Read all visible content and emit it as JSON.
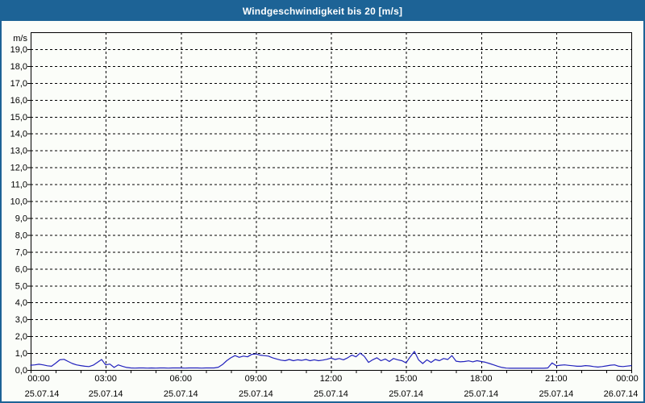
{
  "window": {
    "title": "Windgeschwindigkeit bis 20 [m/s]",
    "colors": {
      "titlebar_bg": "#1d6396",
      "frame_border": "#1d6396",
      "page_bg": "#fbfdf9",
      "grid": "#000000",
      "axis": "#000000",
      "line": "#2222bd"
    }
  },
  "chart_data": {
    "type": "line",
    "title": "Windgeschwindigkeit bis 20 [m/s]",
    "ylabel": "m/s",
    "ylim": [
      0,
      20
    ],
    "grid": true,
    "legend": "none",
    "y_tick_labels": [
      "0,0",
      "1,0",
      "2,0",
      "3,0",
      "4,0",
      "5,0",
      "6,0",
      "7,0",
      "8,0",
      "9,0",
      "10,0",
      "11,0",
      "12,0",
      "13,0",
      "14,0",
      "15,0",
      "16,0",
      "17,0",
      "18,0",
      "19,0"
    ],
    "x_span_hours": 24,
    "x_minor_tick_every_hours": 1,
    "x_ticks": [
      {
        "hour": 0,
        "time": "00:00",
        "date": "25.07.14"
      },
      {
        "hour": 3,
        "time": "03:00",
        "date": "25.07.14"
      },
      {
        "hour": 6,
        "time": "06:00",
        "date": "25.07.14"
      },
      {
        "hour": 9,
        "time": "09:00",
        "date": "25.07.14"
      },
      {
        "hour": 12,
        "time": "12:00",
        "date": "25.07.14"
      },
      {
        "hour": 15,
        "time": "15:00",
        "date": "25.07.14"
      },
      {
        "hour": 18,
        "time": "18:00",
        "date": "25.07.14"
      },
      {
        "hour": 21,
        "time": "21:00",
        "date": "25.07.14"
      },
      {
        "hour": 24,
        "time": "00:00",
        "date": "26.07.14"
      }
    ],
    "series": [
      {
        "name": "Windgeschwindigkeit",
        "color": "#2222bd",
        "start_hour": 0,
        "step_minutes": 10,
        "values": [
          0.28,
          0.3,
          0.34,
          0.3,
          0.25,
          0.22,
          0.4,
          0.6,
          0.63,
          0.5,
          0.38,
          0.3,
          0.26,
          0.22,
          0.2,
          0.28,
          0.45,
          0.62,
          0.3,
          0.35,
          0.15,
          0.3,
          0.22,
          0.15,
          0.12,
          0.11,
          0.12,
          0.12,
          0.11,
          0.12,
          0.11,
          0.12,
          0.12,
          0.11,
          0.12,
          0.12,
          0.12,
          0.11,
          0.12,
          0.12,
          0.12,
          0.11,
          0.12,
          0.12,
          0.12,
          0.16,
          0.32,
          0.55,
          0.72,
          0.85,
          0.75,
          0.82,
          0.78,
          0.92,
          0.95,
          0.88,
          0.85,
          0.82,
          0.72,
          0.65,
          0.58,
          0.55,
          0.62,
          0.55,
          0.6,
          0.57,
          0.62,
          0.55,
          0.6,
          0.55,
          0.58,
          0.63,
          0.7,
          0.62,
          0.68,
          0.6,
          0.72,
          0.88,
          0.78,
          1.0,
          0.8,
          0.45,
          0.6,
          0.72,
          0.55,
          0.65,
          0.5,
          0.68,
          0.6,
          0.55,
          0.42,
          0.78,
          1.1,
          0.6,
          0.38,
          0.6,
          0.45,
          0.62,
          0.55,
          0.68,
          0.62,
          0.85,
          0.52,
          0.48,
          0.5,
          0.54,
          0.48,
          0.55,
          0.5,
          0.46,
          0.38,
          0.3,
          0.22,
          0.15,
          0.11,
          0.1,
          0.1,
          0.1,
          0.1,
          0.1,
          0.1,
          0.1,
          0.1,
          0.1,
          0.12,
          0.42,
          0.25,
          0.28,
          0.3,
          0.27,
          0.25,
          0.22,
          0.22,
          0.26,
          0.24,
          0.2,
          0.17,
          0.2,
          0.24,
          0.28,
          0.3,
          0.22,
          0.2,
          0.23,
          0.26
        ]
      }
    ]
  }
}
